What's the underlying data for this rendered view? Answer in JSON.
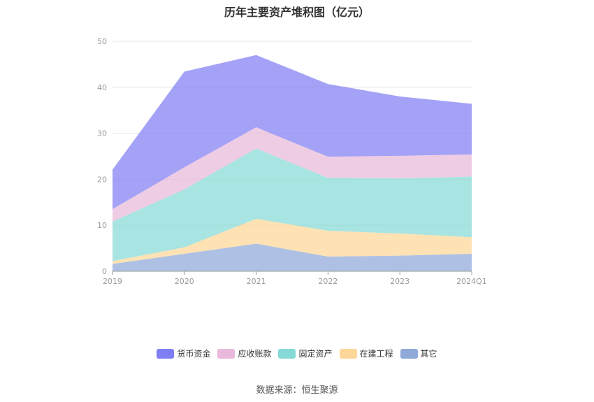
{
  "chart_data": {
    "type": "area",
    "stacked": true,
    "title": "历年主要资产堆积图（亿元）",
    "categories": [
      "2019",
      "2020",
      "2021",
      "2022",
      "2023",
      "2024Q1"
    ],
    "ylim": [
      0,
      50
    ],
    "yticks": [
      0,
      10,
      20,
      30,
      40,
      50
    ],
    "grid": true,
    "legend_position": "bottom",
    "series": [
      {
        "name": "其它",
        "color": "#8FA9D9",
        "values": [
          1.6,
          3.8,
          6.0,
          3.2,
          3.4,
          3.8
        ]
      },
      {
        "name": "在建工程",
        "color": "#FDD797",
        "values": [
          0.6,
          1.4,
          5.4,
          5.6,
          4.8,
          3.6
        ]
      },
      {
        "name": "固定资产",
        "color": "#86D9D6",
        "values": [
          8.6,
          12.6,
          15.3,
          11.5,
          12.0,
          13.2
        ]
      },
      {
        "name": "应收账款",
        "color": "#E8B9DA",
        "values": [
          2.7,
          4.8,
          4.6,
          4.6,
          4.9,
          4.8
        ]
      },
      {
        "name": "货币资金",
        "color": "#7F7EF4",
        "values": [
          8.6,
          20.8,
          15.7,
          15.8,
          12.9,
          11.0
        ]
      }
    ],
    "legend_order": [
      "货币资金",
      "应收账款",
      "固定资产",
      "在建工程",
      "其它"
    ]
  },
  "source": "数据来源：恒生聚源"
}
